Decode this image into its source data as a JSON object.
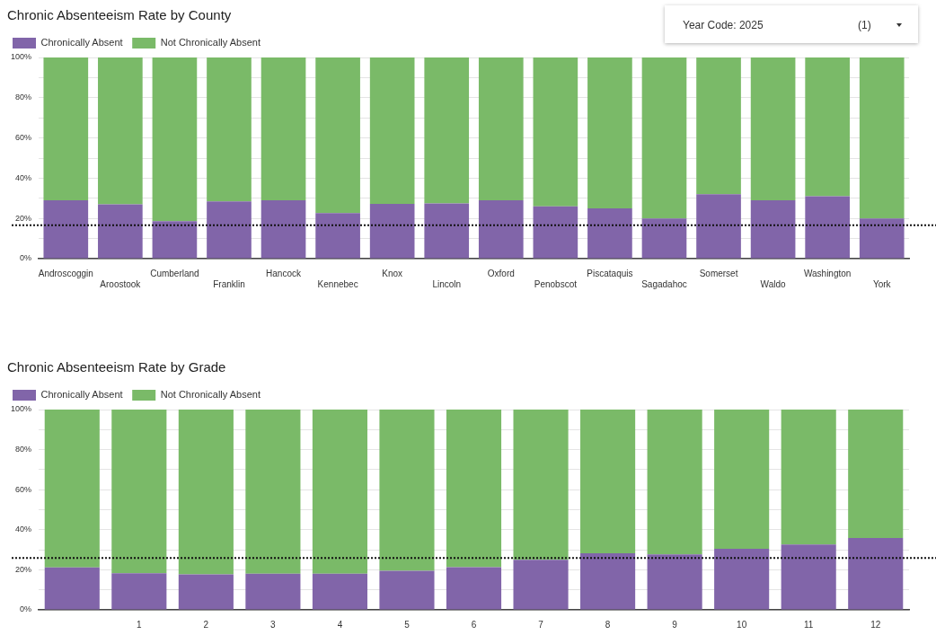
{
  "chart_data": [
    {
      "type": "bar",
      "title": "Chronic Absenteeism Rate by County",
      "annotations": [
        "Year Code: 2025",
        "(1)"
      ],
      "categories": [
        "Androscoggin",
        "Aroostook",
        "Cumberland",
        "Franklin",
        "Hancock",
        "Kennebec",
        "Knox",
        "Lincoln",
        "Oxford",
        "Penobscot",
        "Piscataquis",
        "Sagadahoc",
        "Somerset",
        "Waldo",
        "Washington",
        "York"
      ],
      "stacked": true,
      "series": [
        {
          "name": "Chronically Absent",
          "color": "#8165a9",
          "values": [
            29,
            27,
            18.6,
            28.5,
            29,
            22.7,
            27.2,
            27.5,
            29,
            26,
            25,
            20,
            32,
            29,
            31,
            20
          ]
        },
        {
          "name": "Not Chronically Absent",
          "color": "#7aba68",
          "values": [
            71,
            73,
            81.4,
            71.5,
            71,
            77.3,
            72.8,
            72.5,
            71,
            74,
            75,
            80,
            68,
            71,
            69,
            80
          ]
        }
      ],
      "ylim": [
        0,
        100
      ],
      "yticks": [
        {
          "value": 0,
          "label": "0%"
        },
        {
          "value": 10,
          "label": null
        },
        {
          "value": 20,
          "label": "20%"
        },
        {
          "value": 30,
          "label": null
        },
        {
          "value": 40,
          "label": "40%"
        },
        {
          "value": 50,
          "label": null
        },
        {
          "value": 60,
          "label": "60%"
        },
        {
          "value": 70,
          "label": null
        },
        {
          "value": 80,
          "label": "80%"
        },
        {
          "value": 90,
          "label": null
        },
        {
          "value": 100,
          "label": "100%"
        }
      ],
      "grid": "y",
      "legend": "top left",
      "ref_lines": [
        {
          "axis": "y",
          "value": 16.6,
          "color": "#111111",
          "line_style": "dotted"
        }
      ]
    },
    {
      "type": "bar",
      "title": "Chronic Absenteeism Rate by Grade",
      "categories": [
        null,
        "1",
        "2",
        "3",
        "4",
        "5",
        "6",
        "7",
        "8",
        "9",
        "10",
        "11",
        "12"
      ],
      "stacked": true,
      "series": [
        {
          "name": "Chronically Absent",
          "color": "#8165a9",
          "values": [
            21.2,
            18.3,
            17.7,
            18.1,
            18.1,
            19.5,
            21.3,
            25,
            28.2,
            27.7,
            30.5,
            32.6,
            35.9
          ]
        },
        {
          "name": "Not Chronically Absent",
          "color": "#7aba68",
          "values": [
            78.8,
            81.7,
            82.3,
            81.9,
            81.9,
            80.5,
            78.7,
            75,
            71.8,
            72.3,
            69.5,
            67.4,
            64.1
          ]
        }
      ],
      "ylim": [
        0,
        100
      ],
      "yticks": [
        {
          "value": 0,
          "label": "0%"
        },
        {
          "value": 10,
          "label": null
        },
        {
          "value": 20,
          "label": "20%"
        },
        {
          "value": 30,
          "label": null
        },
        {
          "value": 40,
          "label": "40%"
        },
        {
          "value": 50,
          "label": null
        },
        {
          "value": 60,
          "label": "60%"
        },
        {
          "value": 70,
          "label": null
        },
        {
          "value": 80,
          "label": "80%"
        },
        {
          "value": 90,
          "label": null
        },
        {
          "value": 100,
          "label": "100%"
        }
      ],
      "grid": "y",
      "legend": "top left",
      "ref_lines": [
        {
          "axis": "y",
          "value": 25.9,
          "color": "#111111",
          "line_style": "dotted"
        }
      ]
    }
  ]
}
